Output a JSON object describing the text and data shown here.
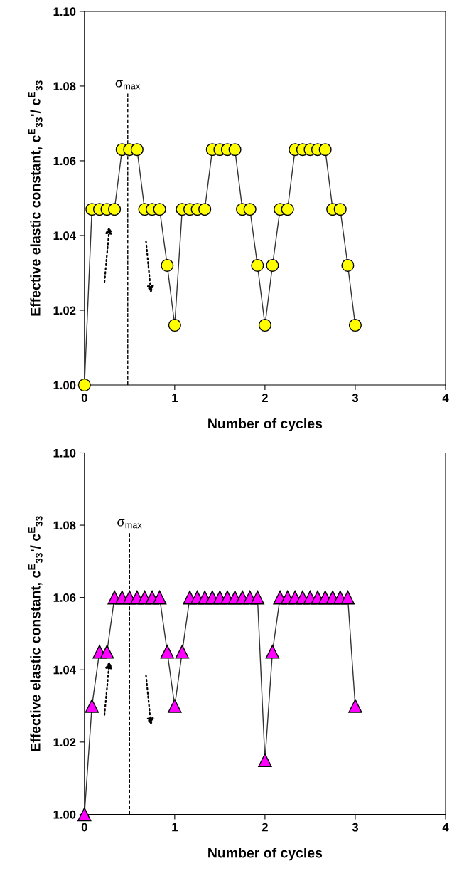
{
  "chart_data": [
    {
      "type": "line",
      "xlabel": "Number of cycles",
      "ylabel": "Effective elastic constant, c$^{E}$$_{33}$'/ c$^{E}$$_{33}$",
      "xlim": [
        0,
        4
      ],
      "xticks": [
        0,
        1,
        2,
        3,
        4
      ],
      "ylim": [
        1.0,
        1.1
      ],
      "yticks": [
        {
          "value": 1.0,
          "label": "1.00"
        },
        {
          "value": 1.02,
          "label": "1.02"
        },
        {
          "value": 1.04,
          "label": "1.04"
        },
        {
          "value": 1.06,
          "label": "1.06"
        },
        {
          "value": 1.08,
          "label": "1.08"
        },
        {
          "value": 1.1,
          "label": "1.10"
        }
      ],
      "grid": false,
      "marker": "circle",
      "line_style": "solid",
      "ref_lines": [
        {
          "axis": "x",
          "value": 0.48,
          "label": "σ$_{max}$",
          "line_style": "dashed",
          "color": "#000000"
        }
      ],
      "series": [
        {
          "color": "#ffff00",
          "x": [
            0,
            0.083,
            0.167,
            0.25,
            0.333,
            0.417,
            0.5,
            0.583,
            0.667,
            0.75,
            0.833,
            0.917,
            1.0,
            1.083,
            1.167,
            1.25,
            1.333,
            1.417,
            1.5,
            1.583,
            1.667,
            1.75,
            1.833,
            1.917,
            2.0,
            2.083,
            2.167,
            2.25,
            2.333,
            2.417,
            2.5,
            2.583,
            2.667,
            2.75,
            2.833,
            2.917,
            3.0
          ],
          "values": [
            1.0,
            1.047,
            1.047,
            1.047,
            1.047,
            1.063,
            1.063,
            1.063,
            1.047,
            1.047,
            1.047,
            1.032,
            1.016,
            1.047,
            1.047,
            1.047,
            1.047,
            1.063,
            1.063,
            1.063,
            1.063,
            1.047,
            1.047,
            1.032,
            1.016,
            1.032,
            1.047,
            1.047,
            1.063,
            1.063,
            1.063,
            1.063,
            1.063,
            1.047,
            1.047,
            1.032,
            1.016
          ]
        }
      ]
    },
    {
      "type": "line",
      "xlabel": "Number of cycles",
      "ylabel": "Effective elastic constant, c$^{E}$$_{33}$'/ c$^{E}$$_{33}$",
      "xlim": [
        0,
        4
      ],
      "xticks": [
        0,
        1,
        2,
        3,
        4
      ],
      "ylim": [
        1.0,
        1.1
      ],
      "yticks": [
        {
          "value": 1.0,
          "label": "1.00"
        },
        {
          "value": 1.02,
          "label": "1.02"
        },
        {
          "value": 1.04,
          "label": "1.04"
        },
        {
          "value": 1.06,
          "label": "1.06"
        },
        {
          "value": 1.08,
          "label": "1.08"
        },
        {
          "value": 1.1,
          "label": "1.10"
        }
      ],
      "grid": false,
      "marker": "triangle",
      "line_style": "solid",
      "ref_lines": [
        {
          "axis": "x",
          "value": 0.5,
          "label": "σ$_{max}$",
          "line_style": "dashed",
          "color": "#000000"
        }
      ],
      "series": [
        {
          "color": "#ff00ff",
          "x": [
            0,
            0.083,
            0.167,
            0.25,
            0.333,
            0.417,
            0.5,
            0.583,
            0.667,
            0.75,
            0.833,
            0.917,
            1.0,
            1.083,
            1.167,
            1.25,
            1.333,
            1.417,
            1.5,
            1.583,
            1.667,
            1.75,
            1.833,
            1.917,
            2.0,
            2.083,
            2.167,
            2.25,
            2.333,
            2.417,
            2.5,
            2.583,
            2.667,
            2.75,
            2.833,
            2.917,
            3.0
          ],
          "values": [
            1.0,
            1.03,
            1.045,
            1.045,
            1.06,
            1.06,
            1.06,
            1.06,
            1.06,
            1.06,
            1.06,
            1.045,
            1.03,
            1.045,
            1.06,
            1.06,
            1.06,
            1.06,
            1.06,
            1.06,
            1.06,
            1.06,
            1.06,
            1.06,
            1.015,
            1.045,
            1.06,
            1.06,
            1.06,
            1.06,
            1.06,
            1.06,
            1.06,
            1.06,
            1.06,
            1.06,
            1.03
          ]
        }
      ]
    }
  ]
}
